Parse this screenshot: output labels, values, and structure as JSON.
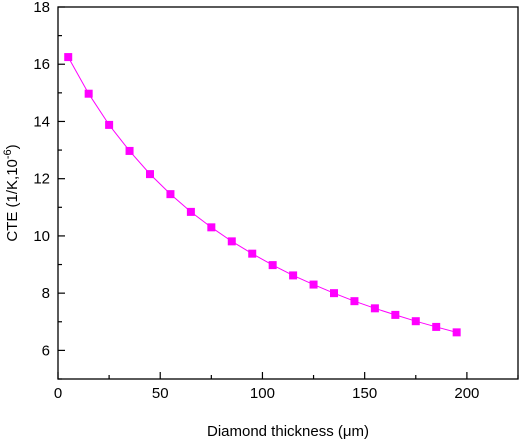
{
  "chart_data": {
    "type": "line",
    "xlabel": "Diamond thickness (μm)",
    "ylabel_main": "CTE (1/K,10",
    "ylabel_exp": "-6",
    "ylabel_close": ")",
    "xlim": [
      0,
      225
    ],
    "ylim": [
      5,
      18
    ],
    "xticks": [
      0,
      50,
      100,
      150,
      200
    ],
    "yticks": [
      6,
      8,
      10,
      12,
      14,
      16,
      18
    ],
    "marker": "square",
    "color": "#ff00ff",
    "grid": false,
    "series": [
      {
        "x": [
          5,
          15,
          25,
          35,
          45,
          55,
          65,
          75,
          85,
          95,
          105,
          115,
          125,
          135,
          145,
          155,
          165,
          175,
          185,
          195
        ],
        "y": [
          16.25,
          14.97,
          13.88,
          12.97,
          12.16,
          11.46,
          10.84,
          10.3,
          9.81,
          9.38,
          8.98,
          8.62,
          8.3,
          8.0,
          7.72,
          7.47,
          7.24,
          7.02,
          6.82,
          6.63
        ]
      }
    ]
  }
}
